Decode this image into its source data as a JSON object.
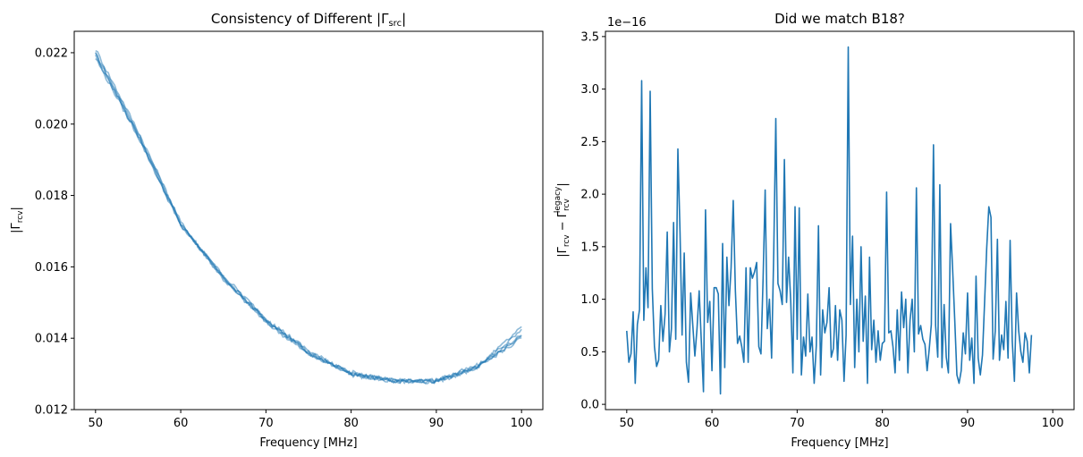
{
  "chart_data": [
    {
      "type": "line",
      "title": "Consistency of Different |Γsrc|",
      "xlabel": "Frequency [MHz]",
      "ylabel": "|Γrcv|",
      "xlim": [
        47.5,
        102.5
      ],
      "ylim": [
        0.012,
        0.0226
      ],
      "xticks": [
        "50",
        "60",
        "70",
        "80",
        "90",
        "100"
      ],
      "yticks": [
        "0.012",
        "0.014",
        "0.016",
        "0.018",
        "0.020",
        "0.022"
      ],
      "grid": false,
      "color": "#1f77b4",
      "x": [
        50,
        55,
        60,
        65,
        70,
        75,
        80,
        85,
        90,
        95,
        100
      ],
      "series": [
        {
          "values": [
            0.02195,
            0.0197,
            0.0172,
            0.0157,
            0.0145,
            0.0136,
            0.013,
            0.0128,
            0.0128,
            0.0132,
            0.0141
          ]
        },
        {
          "values": [
            0.0221,
            0.0198,
            0.01725,
            0.01565,
            0.01445,
            0.01355,
            0.01305,
            0.01282,
            0.01283,
            0.01325,
            0.0142
          ]
        },
        {
          "values": [
            0.02185,
            0.01965,
            0.01715,
            0.01575,
            0.01455,
            0.01365,
            0.01298,
            0.01278,
            0.01278,
            0.01318,
            0.01405
          ]
        },
        {
          "values": [
            0.022,
            0.01975,
            0.01722,
            0.01568,
            0.01452,
            0.01358,
            0.01302,
            0.01281,
            0.01281,
            0.01322,
            0.0143
          ]
        },
        {
          "values": [
            0.0219,
            0.01968,
            0.01718,
            0.01572,
            0.01448,
            0.01362,
            0.013,
            0.01279,
            0.01279,
            0.01321,
            0.014
          ]
        }
      ]
    },
    {
      "type": "line",
      "title": "Did we match B18?",
      "xlabel": "Frequency [MHz]",
      "ylabel": "|Γrcv − Γrcv legacy|",
      "offset_text": "1e−16",
      "xlim": [
        47.5,
        102.5
      ],
      "ylim": [
        -0.05,
        3.55
      ],
      "xticks": [
        "50",
        "60",
        "70",
        "80",
        "90",
        "100"
      ],
      "yticks": [
        "0.0",
        "0.5",
        "1.0",
        "1.5",
        "2.0",
        "2.5",
        "3.0",
        "3.5"
      ],
      "grid": false,
      "color": "#1f77b4",
      "x_start": 50,
      "x_step": 0.25,
      "values": [
        0.7,
        0.4,
        0.48,
        0.88,
        0.2,
        0.76,
        0.9,
        3.08,
        0.8,
        1.3,
        0.92,
        2.98,
        1.1,
        0.55,
        0.36,
        0.42,
        0.94,
        0.6,
        0.86,
        1.64,
        0.5,
        0.72,
        1.73,
        0.62,
        2.43,
        1.64,
        0.66,
        1.44,
        0.4,
        0.21,
        1.06,
        0.75,
        0.46,
        0.72,
        1.08,
        0.6,
        0.12,
        1.85,
        0.78,
        0.98,
        0.32,
        1.11,
        1.11,
        1.05,
        0.1,
        1.53,
        0.35,
        1.4,
        0.94,
        1.3,
        1.94,
        1.08,
        0.58,
        0.65,
        0.55,
        0.4,
        1.3,
        0.4,
        1.3,
        1.2,
        1.26,
        1.35,
        0.55,
        0.48,
        1.2,
        2.04,
        0.72,
        1.0,
        0.44,
        1.45,
        2.72,
        1.15,
        1.08,
        0.95,
        2.33,
        0.97,
        1.4,
        0.98,
        0.3,
        1.88,
        0.62,
        1.87,
        0.28,
        0.64,
        0.46,
        1.05,
        0.5,
        0.64,
        0.2,
        0.56,
        1.7,
        0.28,
        0.9,
        0.68,
        0.78,
        1.11,
        0.45,
        0.53,
        0.94,
        0.42,
        0.9,
        0.8,
        0.22,
        0.66,
        3.4,
        0.95,
        1.6,
        0.35,
        1.0,
        0.5,
        1.5,
        0.6,
        1.03,
        0.2,
        1.4,
        0.52,
        0.8,
        0.4,
        0.7,
        0.42,
        0.58,
        0.6,
        2.02,
        0.68,
        0.7,
        0.55,
        0.3,
        0.9,
        0.42,
        1.07,
        0.73,
        1.0,
        0.3,
        0.8,
        1.0,
        0.5,
        2.06,
        0.67,
        0.75,
        0.62,
        0.57,
        0.32,
        0.52,
        0.76,
        2.47,
        0.75,
        0.45,
        2.09,
        0.35,
        0.95,
        0.45,
        0.3,
        1.72,
        1.29,
        0.8,
        0.28,
        0.2,
        0.32,
        0.68,
        0.48,
        1.06,
        0.42,
        0.63,
        0.2,
        1.22,
        0.44,
        0.28,
        0.47,
        0.98,
        1.48,
        1.88,
        1.78,
        0.43,
        0.7,
        1.57,
        0.42,
        0.66,
        0.52,
        0.98,
        0.44,
        1.56,
        0.6,
        0.22,
        1.06,
        0.7,
        0.5,
        0.4,
        0.68,
        0.6,
        0.3,
        0.66
      ]
    }
  ]
}
